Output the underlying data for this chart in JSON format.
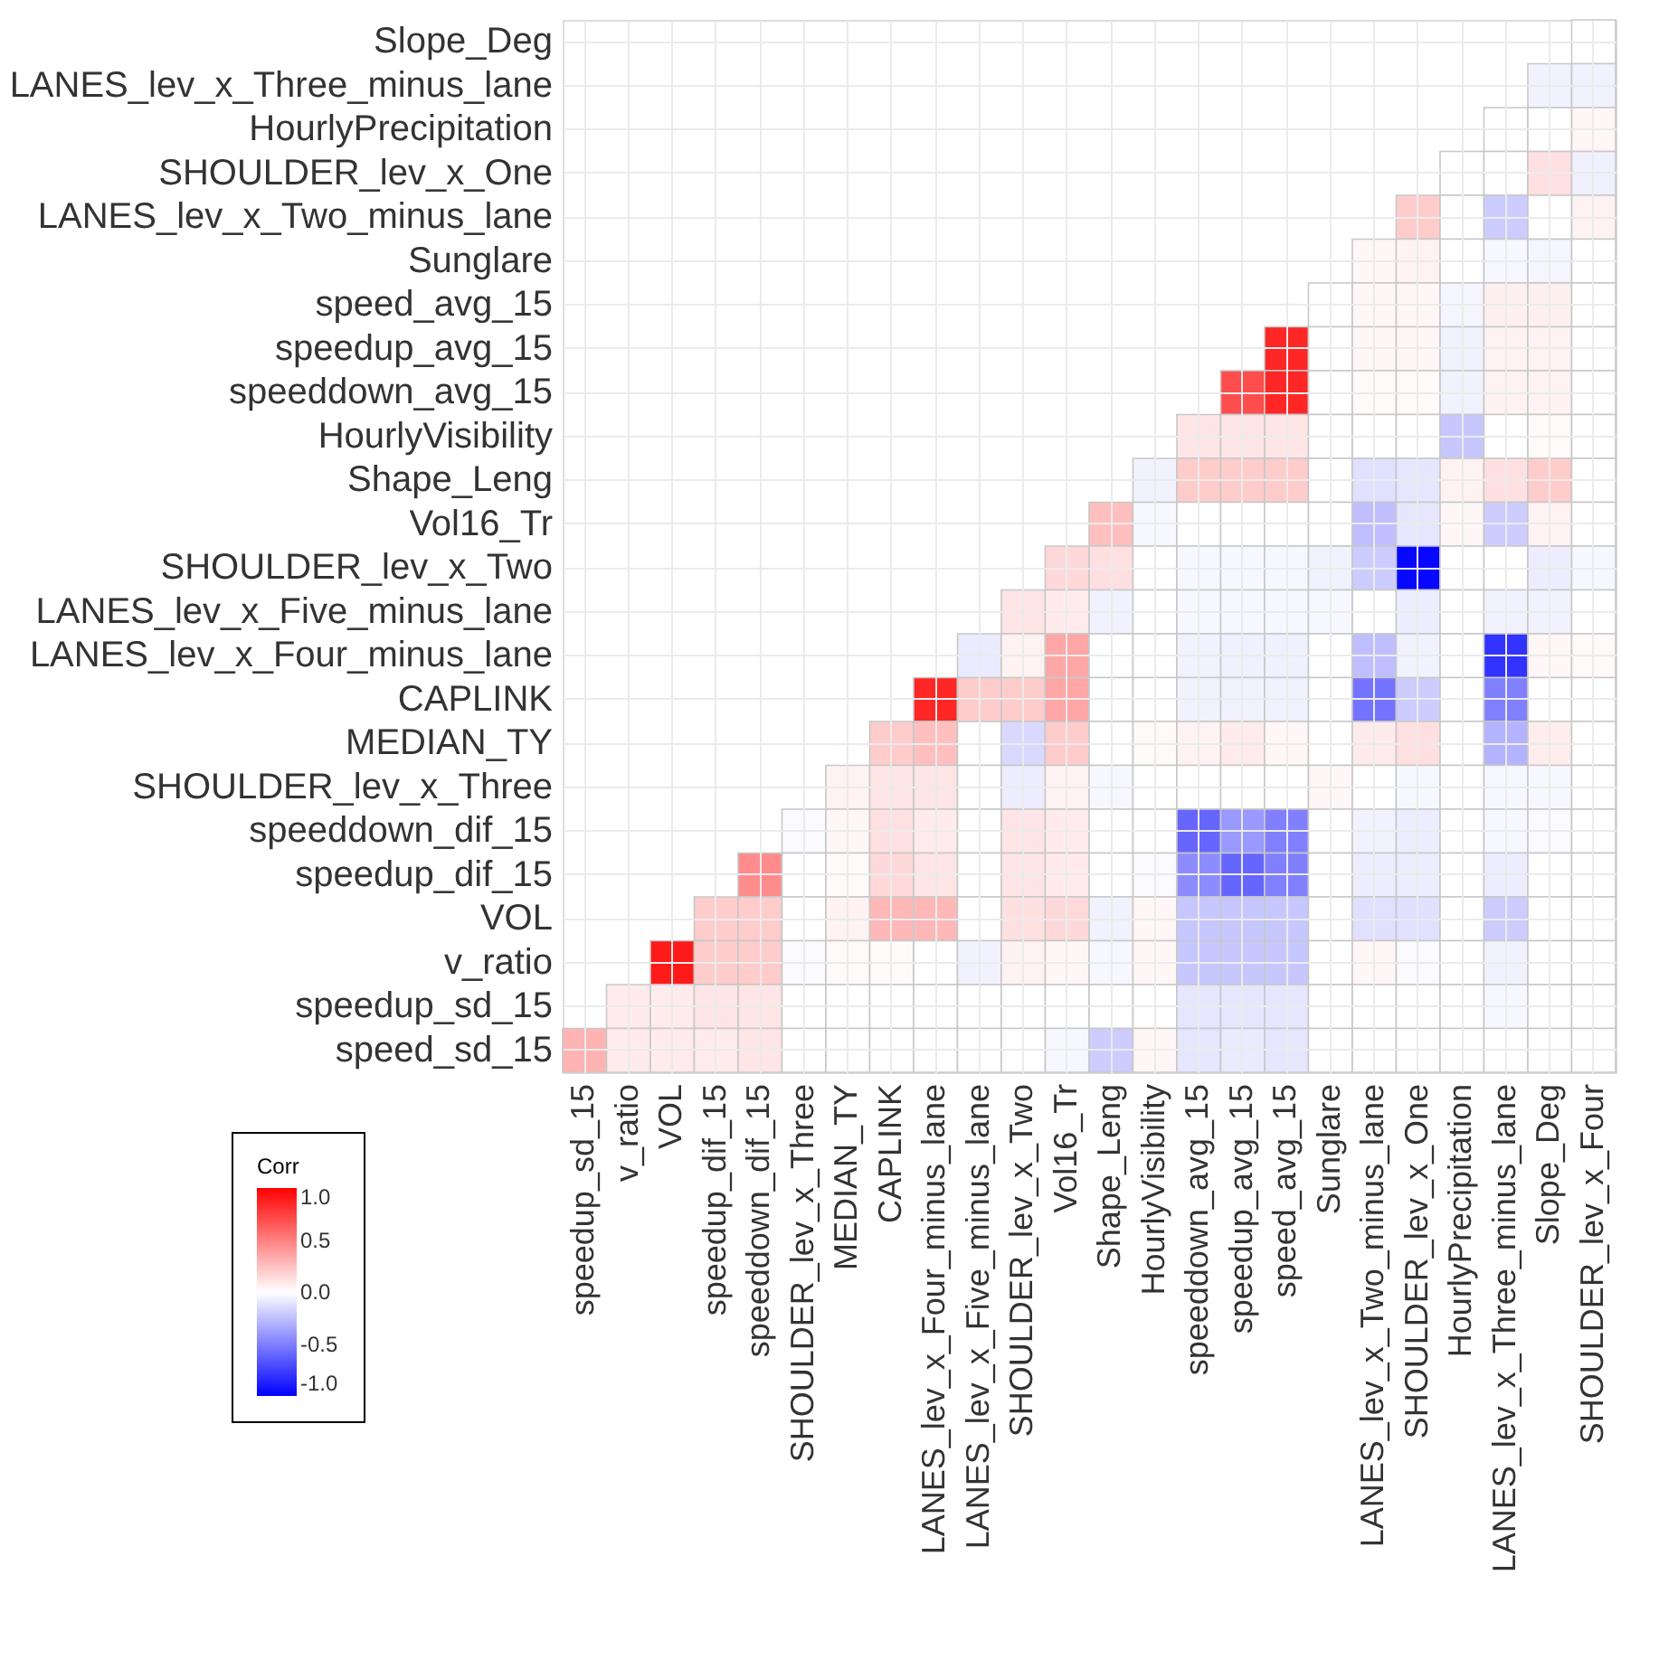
{
  "chart_data": {
    "type": "heatmap",
    "clabel": "Corr",
    "clim": [
      -1,
      1
    ],
    "cticks": [
      {
        "value": -1,
        "label": "-1.0"
      },
      {
        "value": -0.5,
        "label": "-0.5"
      },
      {
        "value": 0,
        "label": "0.0"
      },
      {
        "value": 0.5,
        "label": "0.5"
      },
      {
        "value": 1,
        "label": "1.0"
      }
    ],
    "grid": true,
    "categories": [
      "speedup_sd_15",
      "v_ratio",
      "VOL",
      "speedup_dif_15",
      "speeddown_dif_15",
      "SHOULDER_lev_x_Three",
      "MEDIAN_TY",
      "CAPLINK",
      "LANES_lev_x_Four_minus_lane",
      "LANES_lev_x_Five_minus_lane",
      "SHOULDER_lev_x_Two",
      "Vol16_Tr",
      "Shape_Leng",
      "HourlyVisibility",
      "speeddown_avg_15",
      "speedup_avg_15",
      "speed_avg_15",
      "Sunglare",
      "LANES_lev_x_Two_minus_lane",
      "SHOULDER_lev_x_One",
      "HourlyPrecipitation",
      "LANES_lev_x_Three_minus_lane",
      "Slope_Deg",
      "SHOULDER_lev_x_Four"
    ],
    "y_categories": [
      "Slope_Deg",
      "LANES_lev_x_Three_minus_lane",
      "HourlyPrecipitation",
      "SHOULDER_lev_x_One",
      "LANES_lev_x_Two_minus_lane",
      "Sunglare",
      "speed_avg_15",
      "speedup_avg_15",
      "speeddown_avg_15",
      "HourlyVisibility",
      "Shape_Leng",
      "Vol16_Tr",
      "SHOULDER_lev_x_Two",
      "LANES_lev_x_Five_minus_lane",
      "LANES_lev_x_Four_minus_lane",
      "CAPLINK",
      "MEDIAN_TY",
      "SHOULDER_lev_x_Three",
      "speeddown_dif_15",
      "speedup_dif_15",
      "VOL",
      "v_ratio",
      "speedup_sd_15",
      "speed_sd_15"
    ],
    "cells": [
      [
        null,
        null,
        null,
        null,
        null,
        null,
        null,
        null,
        null,
        null,
        null,
        null,
        null,
        null,
        null,
        null,
        null,
        null,
        null,
        null,
        null,
        null,
        null,
        0
      ],
      [
        null,
        null,
        null,
        null,
        null,
        null,
        null,
        null,
        null,
        null,
        null,
        null,
        null,
        null,
        null,
        null,
        null,
        null,
        null,
        null,
        null,
        null,
        -0.05,
        -0.05
      ],
      [
        null,
        null,
        null,
        null,
        null,
        null,
        null,
        null,
        null,
        null,
        null,
        null,
        null,
        null,
        null,
        null,
        null,
        null,
        null,
        null,
        null,
        0,
        0,
        0.03
      ],
      [
        null,
        null,
        null,
        null,
        null,
        null,
        null,
        null,
        null,
        null,
        null,
        null,
        null,
        null,
        null,
        null,
        null,
        null,
        null,
        null,
        0,
        0,
        0.12,
        -0.06
      ],
      [
        null,
        null,
        null,
        null,
        null,
        null,
        null,
        null,
        null,
        null,
        null,
        null,
        null,
        null,
        null,
        null,
        null,
        null,
        null,
        0.2,
        0,
        -0.2,
        0,
        0.05
      ],
      [
        null,
        null,
        null,
        null,
        null,
        null,
        null,
        null,
        null,
        null,
        null,
        null,
        null,
        null,
        null,
        null,
        null,
        null,
        0.03,
        0.05,
        0,
        -0.03,
        -0.04,
        0
      ],
      [
        null,
        null,
        null,
        null,
        null,
        null,
        null,
        null,
        null,
        null,
        null,
        null,
        null,
        null,
        null,
        null,
        null,
        0,
        0.03,
        0.03,
        -0.04,
        0.06,
        0.06,
        0
      ],
      [
        null,
        null,
        null,
        null,
        null,
        null,
        null,
        null,
        null,
        null,
        null,
        null,
        null,
        null,
        null,
        null,
        0.85,
        0,
        0.03,
        0.03,
        -0.05,
        0.05,
        0.05,
        0
      ],
      [
        null,
        null,
        null,
        null,
        null,
        null,
        null,
        null,
        null,
        null,
        null,
        null,
        null,
        null,
        null,
        0.7,
        0.85,
        0,
        0.02,
        0.02,
        -0.05,
        0.05,
        0.05,
        0
      ],
      [
        null,
        null,
        null,
        null,
        null,
        null,
        null,
        null,
        null,
        null,
        null,
        null,
        null,
        null,
        0.1,
        0.1,
        0.1,
        0,
        0,
        0,
        -0.22,
        0,
        0.02,
        0
      ],
      [
        null,
        null,
        null,
        null,
        null,
        null,
        null,
        null,
        null,
        null,
        null,
        null,
        null,
        -0.05,
        0.2,
        0.2,
        0.2,
        0,
        -0.12,
        -0.1,
        0.05,
        0.12,
        0.2,
        0
      ],
      [
        null,
        null,
        null,
        null,
        null,
        null,
        null,
        null,
        null,
        null,
        null,
        null,
        0.25,
        -0.03,
        0,
        0,
        0,
        0,
        -0.25,
        -0.1,
        0.03,
        -0.2,
        0.05,
        0
      ],
      [
        null,
        null,
        null,
        null,
        null,
        null,
        null,
        null,
        null,
        null,
        null,
        0.15,
        0.12,
        0,
        -0.03,
        -0.03,
        -0.03,
        -0.05,
        -0.2,
        -0.97,
        0,
        0,
        -0.07,
        -0.03
      ],
      [
        null,
        null,
        null,
        null,
        null,
        null,
        null,
        null,
        null,
        null,
        0.1,
        0.08,
        -0.05,
        0,
        -0.03,
        -0.03,
        -0.03,
        -0.03,
        0,
        -0.07,
        0,
        -0.05,
        -0.05,
        0
      ],
      [
        null,
        null,
        null,
        null,
        null,
        null,
        null,
        null,
        null,
        -0.08,
        0.05,
        0.35,
        0,
        0,
        -0.05,
        -0.06,
        -0.06,
        0,
        -0.25,
        -0.05,
        0,
        -0.8,
        0.03,
        0.02
      ],
      [
        null,
        null,
        null,
        null,
        null,
        null,
        null,
        null,
        0.85,
        0.2,
        0.2,
        0.35,
        0,
        0,
        -0.05,
        -0.05,
        -0.05,
        0,
        -0.55,
        -0.2,
        0,
        -0.5,
        0,
        0
      ],
      [
        null,
        null,
        null,
        null,
        null,
        null,
        null,
        0.2,
        0.25,
        0,
        -0.15,
        0.2,
        0,
        0.02,
        0.05,
        0.08,
        0.03,
        0,
        0.08,
        0.12,
        0,
        -0.3,
        0.07,
        0
      ],
      [
        null,
        null,
        null,
        null,
        null,
        null,
        0.05,
        0.1,
        0.1,
        0,
        -0.07,
        0.05,
        -0.03,
        0,
        0,
        0,
        0,
        0.03,
        0,
        -0.03,
        0,
        -0.03,
        -0.03,
        0
      ],
      [
        null,
        null,
        null,
        null,
        null,
        -0.02,
        0.03,
        0.12,
        0.08,
        0,
        0.1,
        0.08,
        0,
        0,
        -0.6,
        -0.4,
        -0.5,
        0,
        -0.05,
        -0.07,
        0,
        -0.03,
        -0.02,
        0
      ],
      [
        null,
        null,
        null,
        null,
        0.45,
        0,
        0.02,
        0.15,
        0.1,
        0,
        0.1,
        0.08,
        0,
        -0.02,
        -0.45,
        -0.6,
        -0.5,
        0,
        -0.07,
        -0.07,
        0,
        -0.07,
        0,
        0
      ],
      [
        null,
        null,
        null,
        0.2,
        0.2,
        0,
        0.05,
        0.28,
        0.28,
        0,
        0.12,
        0.15,
        -0.05,
        0.03,
        -0.22,
        -0.22,
        -0.22,
        0,
        -0.12,
        -0.12,
        0,
        -0.2,
        0,
        0
      ],
      [
        null,
        null,
        0.9,
        0.2,
        0.2,
        -0.02,
        0.02,
        0.02,
        0,
        -0.05,
        0.05,
        0.03,
        -0.03,
        0.03,
        -0.22,
        -0.22,
        -0.22,
        0,
        0.03,
        -0.02,
        0,
        -0.05,
        0,
        0
      ],
      [
        null,
        0.08,
        0.08,
        0.1,
        0.1,
        0,
        0,
        0,
        0,
        0,
        0,
        0,
        0,
        0,
        -0.1,
        -0.1,
        -0.1,
        0,
        0,
        0,
        0,
        -0.03,
        0,
        0
      ],
      [
        0.3,
        0.08,
        0.08,
        0.08,
        0.1,
        0,
        0,
        0,
        0,
        0,
        0,
        -0.03,
        -0.2,
        0.03,
        -0.1,
        -0.08,
        -0.1,
        0,
        0,
        0,
        0,
        0,
        0,
        0
      ]
    ]
  }
}
